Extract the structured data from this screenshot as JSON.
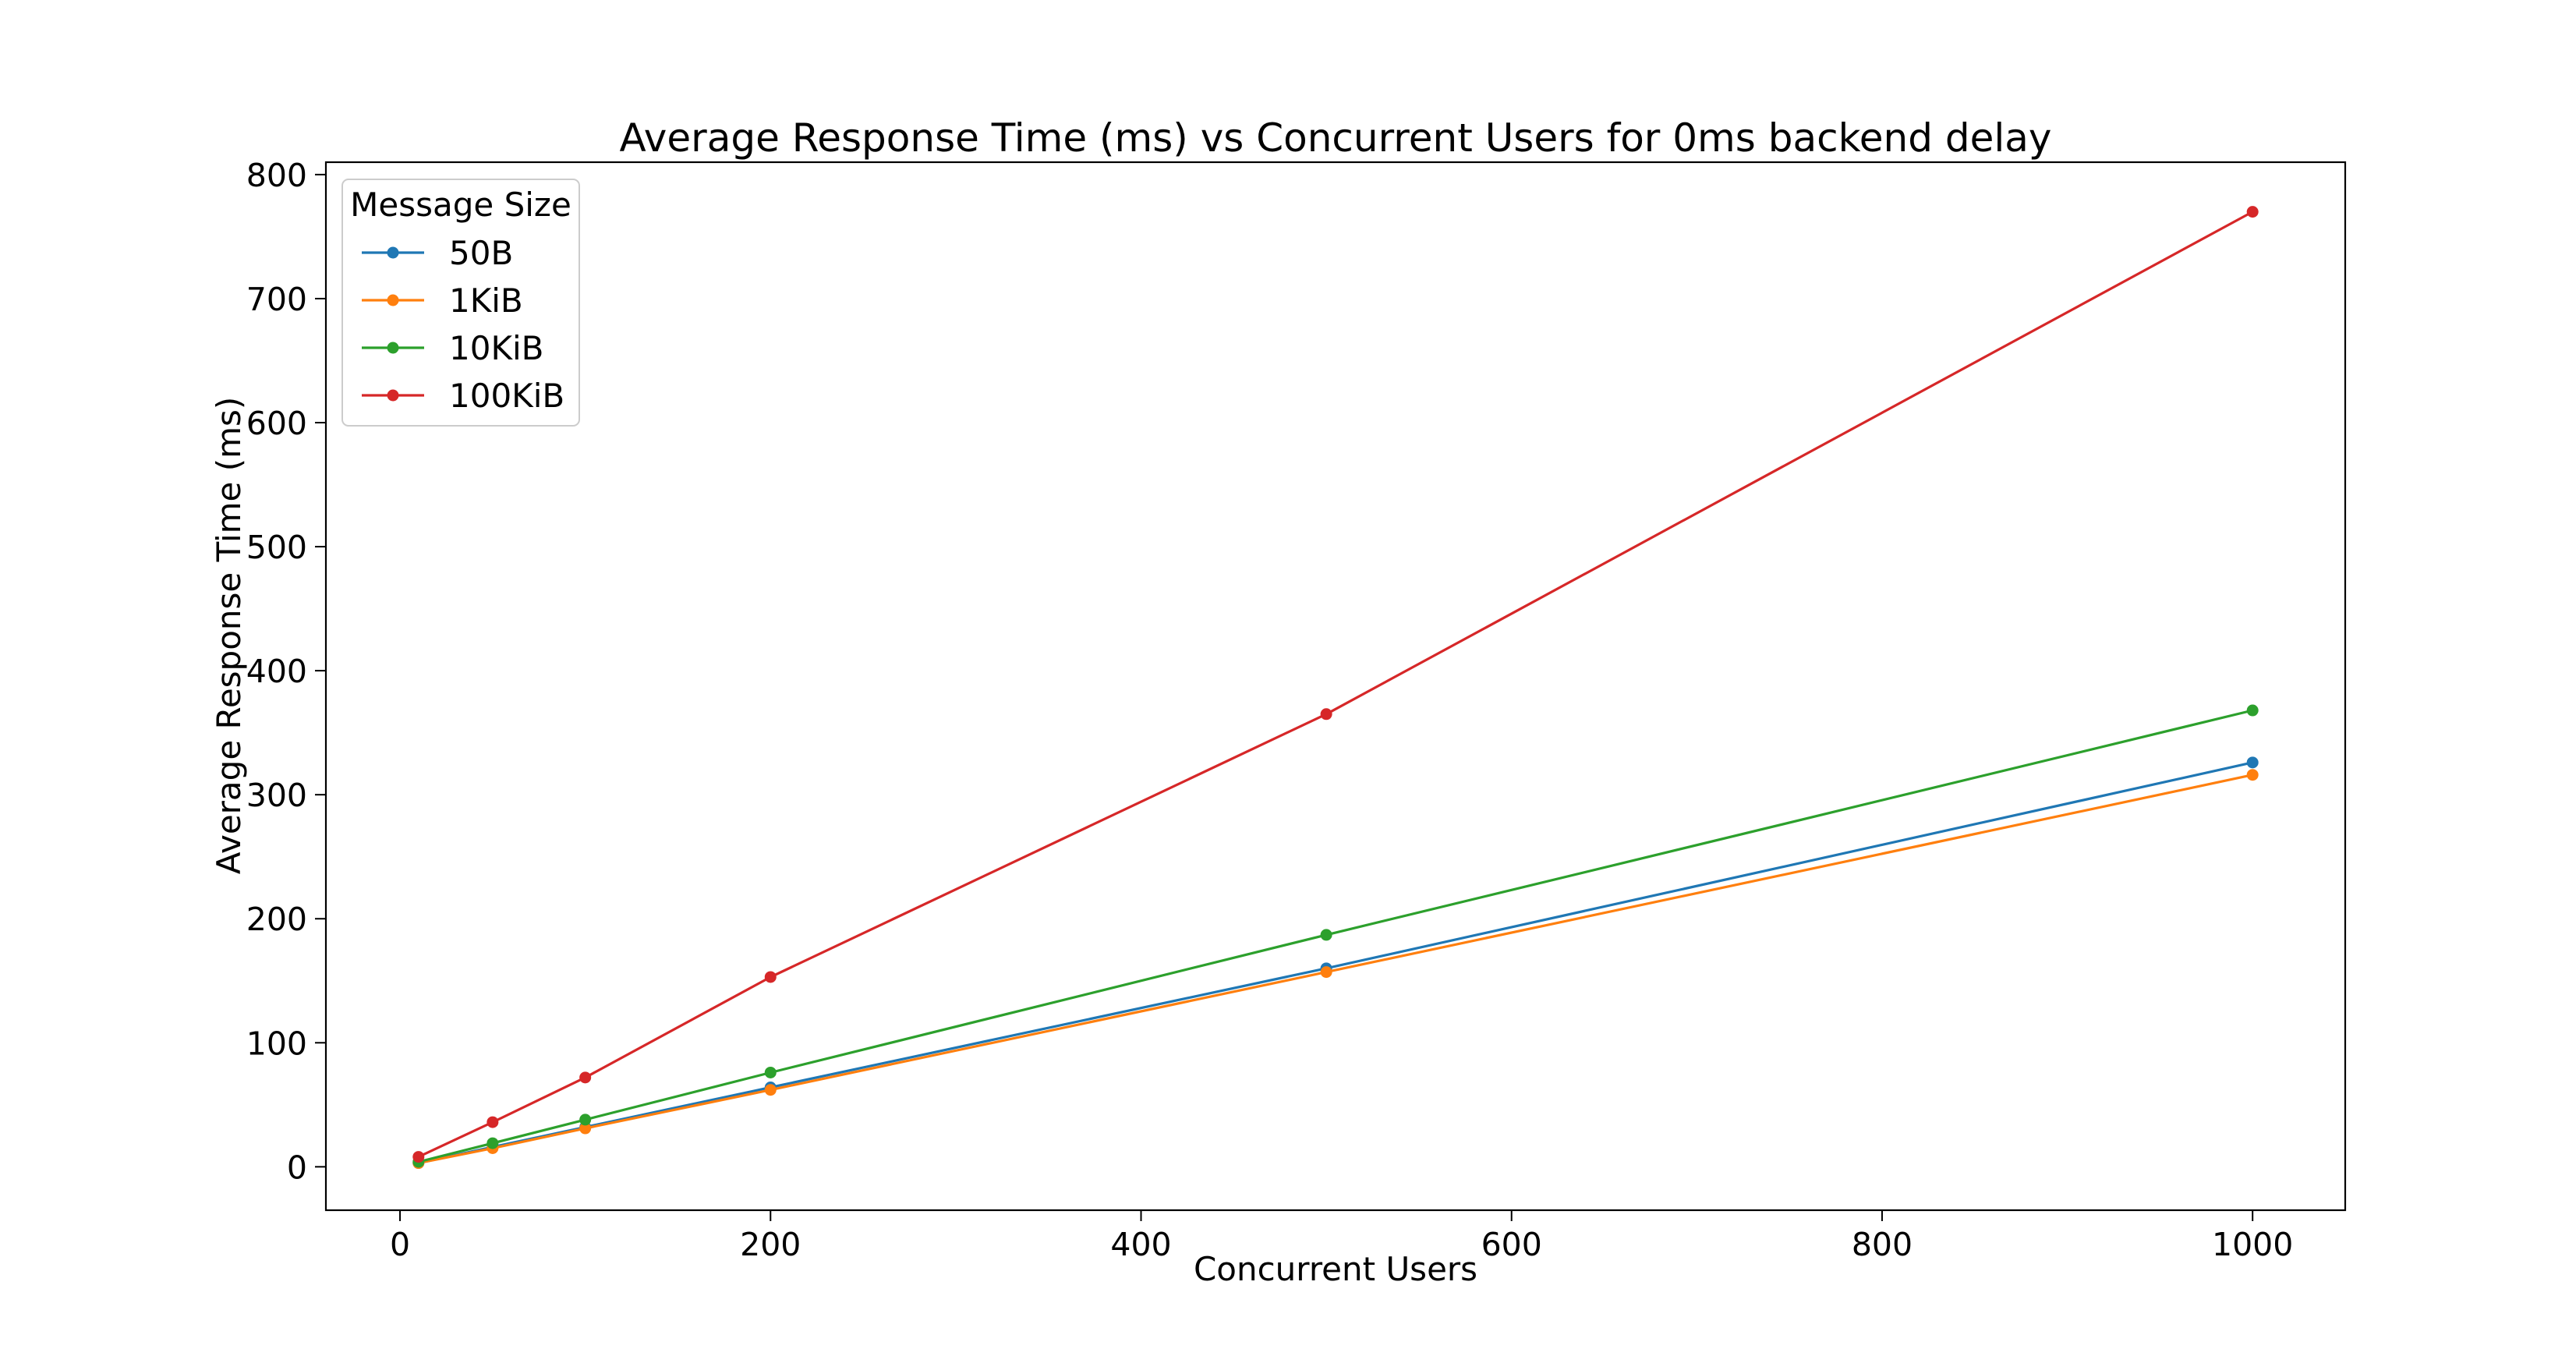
{
  "chart_data": {
    "type": "line",
    "title": "Average Response Time (ms) vs Concurrent Users for 0ms backend delay",
    "xlabel": "Concurrent Users",
    "ylabel": "Average Response Time (ms)",
    "x": [
      10,
      50,
      100,
      200,
      500,
      1000
    ],
    "xlim": [
      -40,
      1050
    ],
    "ylim": [
      -35,
      810
    ],
    "xticks": [
      0,
      200,
      400,
      600,
      800,
      1000
    ],
    "xtick_labels": [
      "0",
      "200",
      "400",
      "600",
      "800",
      "1000"
    ],
    "yticks": [
      0,
      100,
      200,
      300,
      400,
      500,
      600,
      700,
      800
    ],
    "ytick_labels": [
      "0",
      "100",
      "200",
      "300",
      "400",
      "500",
      "600",
      "700",
      "800"
    ],
    "grid": false,
    "legend": {
      "title": "Message Size",
      "position": "top-left"
    },
    "series": [
      {
        "name": "50B",
        "color": "#1f77b4",
        "values": [
          3,
          16,
          32,
          64,
          160,
          326
        ]
      },
      {
        "name": "1KiB",
        "color": "#ff7f0e",
        "values": [
          3,
          15,
          31,
          62,
          157,
          316
        ]
      },
      {
        "name": "10KiB",
        "color": "#2ca02c",
        "values": [
          4,
          19,
          38,
          76,
          187,
          368
        ]
      },
      {
        "name": "100KiB",
        "color": "#d62728",
        "values": [
          8,
          36,
          72,
          153,
          365,
          770
        ]
      }
    ]
  }
}
